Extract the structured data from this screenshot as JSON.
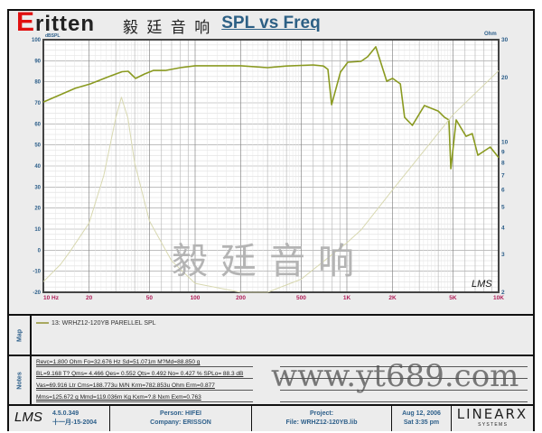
{
  "logo_text": "Eritten",
  "logo_subtitle": "毅 廷 音 响",
  "chart_data": {
    "type": "line",
    "title": "SPL vs Freq",
    "xscale": "log",
    "xlim": [
      10,
      10000
    ],
    "ylabel": "dBSPL",
    "ylim": [
      -20,
      100
    ],
    "y2label": "Ohm",
    "y2scale": "log",
    "y2lim": [
      2,
      30
    ],
    "xticks": [
      {
        "v": 10,
        "l": "10  Hz"
      },
      {
        "v": 20,
        "l": "20"
      },
      {
        "v": 50,
        "l": "50"
      },
      {
        "v": 100,
        "l": "100"
      },
      {
        "v": 200,
        "l": "200"
      },
      {
        "v": 500,
        "l": "500"
      },
      {
        "v": 1000,
        "l": "1K"
      },
      {
        "v": 2000,
        "l": "2K"
      },
      {
        "v": 5000,
        "l": "5K"
      },
      {
        "v": 10000,
        "l": "10K"
      }
    ],
    "yticks": [
      100,
      90,
      80,
      70,
      60,
      50,
      40,
      30,
      20,
      10,
      0,
      -10,
      -20
    ],
    "y2ticks": [
      30,
      20,
      10,
      9,
      8,
      7,
      6,
      5,
      4,
      3,
      2
    ],
    "grid": true,
    "series": [
      {
        "name": "13: WRHZ12-120YB PARELLEL  SPL",
        "axis": "left",
        "color": "#8a9a20",
        "x": [
          10,
          13,
          16.2,
          20.4,
          26.8,
          33,
          36.2,
          40.5,
          46.5,
          53,
          63.6,
          80,
          100,
          200,
          300,
          400,
          600,
          700,
          750,
          793,
          907,
          1014,
          1240,
          1370,
          1550,
          1830,
          2000,
          2250,
          2400,
          2700,
          3240,
          4000,
          4400,
          4700,
          4840,
          5250,
          6100,
          6700,
          7300,
          8100,
          8800,
          9500,
          10000
        ],
        "y": [
          70.4,
          73.9,
          76.9,
          79,
          82.4,
          84.8,
          85,
          81.6,
          83.7,
          85.4,
          85.4,
          86.7,
          87.6,
          87.6,
          86.7,
          87.5,
          88,
          87.5,
          85.9,
          69.1,
          84.6,
          89.3,
          89.7,
          91.9,
          96.6,
          80.3,
          81.6,
          79,
          63.1,
          59.3,
          68.7,
          66.1,
          63.1,
          61.9,
          38.7,
          61.9,
          54.1,
          55.4,
          45.1,
          47.3,
          49,
          46,
          44
        ]
      },
      {
        "axis": "right",
        "color": "#d8d8b0",
        "x": [
          10,
          13,
          15,
          20,
          25,
          30,
          32.7,
          36,
          40,
          50,
          70,
          100,
          200,
          300,
          500,
          1000,
          1240,
          2000,
          5000,
          10000
        ],
        "y": [
          2.24,
          2.7,
          3.1,
          4.2,
          7,
          13,
          16.2,
          13,
          8,
          4.3,
          2.8,
          2.2,
          1.9,
          1.9,
          2.3,
          3.4,
          3.9,
          6,
          13.4,
          21.5
        ]
      }
    ],
    "annotation": "LMS"
  },
  "map": {
    "label": "Map",
    "legend": "13: WRHZ12-120YB PARELLEL  SPL"
  },
  "notes": {
    "label": "Notes",
    "lines": [
      "Revc=1.800 Ohm  Fo=32.676 Hz  Sd=51.071m M?Md=88.850 g",
      "BL=9.168 T?  Qms= 4.466  Qes= 0.552  Qts= 0.492  No= 0.427 %  SPLo= 88.3 dB",
      "Vas=69.916 Ltr  Cms=188.773u M/N  Krm=782.853u Ohm  Erm=0.877",
      "Mms=125.672 g  Mmd=119.036m Kg  Kxm=?.8  Nxm  Exm=0.763"
    ]
  },
  "footer": {
    "lms": "LMS",
    "version": "4.5.0.349",
    "date_built": "十一月-15-2004",
    "person": "Person: HIFEI",
    "company": "Company: ERISSON",
    "project": "Project:",
    "file": "File: WRHZ12-120YB.lib",
    "date": "Aug 12, 2006",
    "time": "Sat  3:35 pm",
    "brand": "LINEARX",
    "brand_sub": "S Y S T E M S"
  },
  "watermark": {
    "url": "www.yt689.com",
    "cn": "毅廷音响"
  }
}
